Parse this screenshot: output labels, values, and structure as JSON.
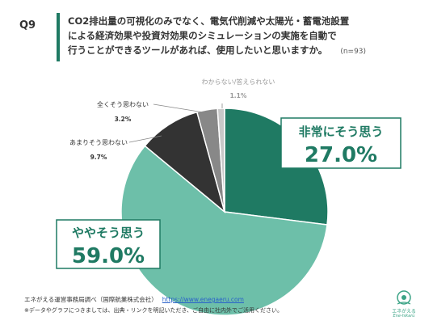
{
  "question": {
    "number": "Q9",
    "text_line1": "CO2排出量の可視化のみでなく、電気代削減や太陽光・蓄電池設置",
    "text_line2": "による経済効果や投資対効果のシミュレーションの実施を自動で",
    "text_line3": "行うことができるツールがあれば、使用したいと思いますか。",
    "n": "(n=93)"
  },
  "chart_data": {
    "type": "pie",
    "title": "",
    "slices": [
      {
        "label": "非常にそう思う",
        "value": 27.0,
        "value_text": "27.0%",
        "color": "#1f7a63"
      },
      {
        "label": "ややそう思う",
        "value": 59.0,
        "value_text": "59.0%",
        "color": "#6dbfa9"
      },
      {
        "label": "あまりそう思わない",
        "value": 9.7,
        "value_text": "9.7%",
        "color": "#333333"
      },
      {
        "label": "全くそう思わない",
        "value": 3.2,
        "value_text": "3.2%",
        "color": "#888888"
      },
      {
        "label": "わからない/答えられない",
        "value": 1.1,
        "value_text": "1.1%",
        "color": "#c8c8c8"
      }
    ]
  },
  "footer": {
    "source": "エネがえる運営事務局調べ（国際航業株式会社）",
    "url": "https://www.enegaeru.com",
    "note": "※データやグラフにつきましては、出典・リンクを明記いただき、ご自由に社内外でご活用ください。"
  },
  "logo": {
    "name": "エネがえる",
    "sub": "Ene-hikaru"
  }
}
